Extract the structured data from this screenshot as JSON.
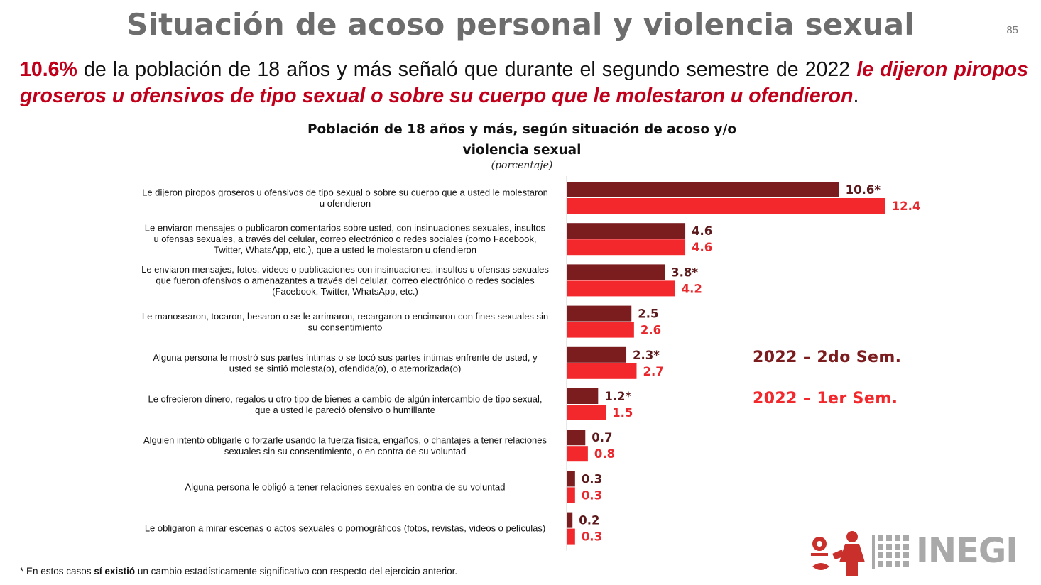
{
  "page": {
    "title": "Situación de acoso personal y violencia sexual",
    "page_number": "85"
  },
  "headline": {
    "highlight_pct": "10.6%",
    "text_mid": " de la población de 18 años y más señaló que durante el segundo semestre de 2022 ",
    "emphasis": "le dijeron piropos groseros u ofensivos de tipo sexual o sobre su cuerpo que le molestaron u ofendieron",
    "end": "."
  },
  "chart_data": {
    "type": "bar",
    "orientation": "horizontal",
    "title_line1": "Población de 18 años y más, según situación de acoso y/o",
    "title_line2": "violencia sexual",
    "subtitle": "(porcentaje)",
    "categories": [
      [
        "Le dijeron piropos groseros u ofensivos de tipo sexual o sobre su cuerpo que a usted le molestaron",
        "u ofendieron"
      ],
      [
        "Le enviaron mensajes o publicaron comentarios sobre usted, con insinuaciones sexuales, insultos",
        "u ofensas sexuales, a través del celular, correo electrónico o redes sociales (como Facebook,",
        "Twitter, WhatsApp, etc.), que a usted le molestaron u ofendieron"
      ],
      [
        "Le enviaron mensajes, fotos, videos o publicaciones con insinuaciones, insultos u ofensas sexuales",
        "que fueron ofensivos o amenazantes a través del celular, correo electrónico o redes sociales",
        "(Facebook, Twitter, WhatsApp, etc.)"
      ],
      [
        "Le manosearon, tocaron, besaron o se le arrimaron, recargaron o encimaron con fines sexuales sin",
        "su consentimiento"
      ],
      [
        "Alguna persona le mostró sus partes íntimas o se tocó sus partes íntimas enfrente de usted, y",
        "usted se sintió molesta(o), ofendida(o), o atemorizada(o)"
      ],
      [
        "Le ofrecieron dinero, regalos u otro tipo de bienes a cambio de algún intercambio de tipo sexual,",
        "que a usted le pareció ofensivo o humillante"
      ],
      [
        "Alguien intentó obligarle o forzarle usando la fuerza física, engaños, o chantajes a tener relaciones",
        "sexuales sin su consentimiento, o en contra de su voluntad"
      ],
      [
        "Alguna persona le obligó a tener relaciones sexuales en contra de su voluntad"
      ],
      [
        "Le obligaron a mirar escenas o actos sexuales o pornográficos (fotos, revistas, videos o películas)"
      ]
    ],
    "series": [
      {
        "name": "2022 – 2do Sem.",
        "color": "#7b1c1f",
        "values": [
          10.6,
          4.6,
          3.8,
          2.5,
          2.3,
          1.2,
          0.7,
          0.3,
          0.2
        ],
        "labels": [
          "10.6*",
          "4.6",
          "3.8*",
          "2.5",
          "2.3*",
          "1.2*",
          "0.7",
          "0.3",
          "0.2"
        ]
      },
      {
        "name": "2022 – 1er Sem.",
        "color": "#f2282c",
        "values": [
          12.4,
          4.6,
          4.2,
          2.6,
          2.7,
          1.5,
          0.8,
          0.3,
          0.3
        ],
        "labels": [
          "12.4",
          "4.6",
          "4.2",
          "2.6",
          "2.7",
          "1.5",
          "0.8",
          "0.3",
          "0.3"
        ]
      }
    ],
    "label_colors": [
      "#5c1a1c",
      "#e8282d"
    ],
    "grid": false,
    "legend_position": "right"
  },
  "footnote": {
    "prefix": "* En estos casos ",
    "bold": "sí existió",
    "suffix": " un cambio estadísticamente significativo con respecto del ejercicio anterior."
  },
  "logo": {
    "text": "INEGI"
  }
}
